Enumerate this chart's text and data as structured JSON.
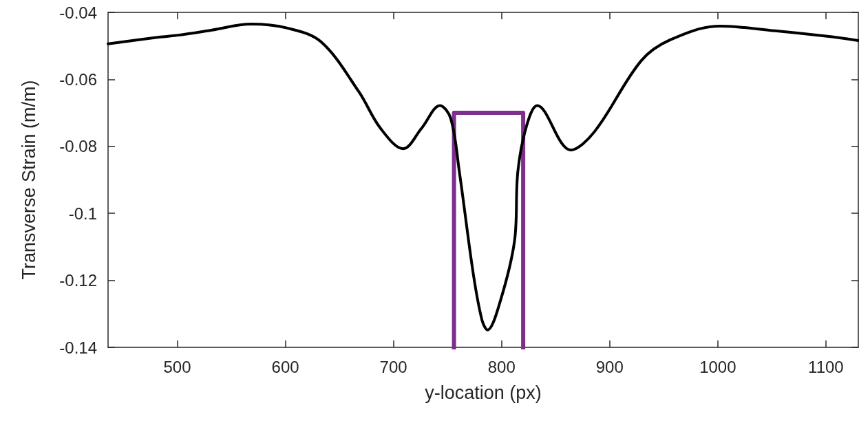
{
  "chart_data": {
    "type": "line",
    "xlabel": "y-location (px)",
    "ylabel": "Transverse Strain (m/m)",
    "xlim": [
      436,
      1130
    ],
    "xticks": [
      500,
      600,
      700,
      800,
      900,
      1000,
      1100
    ],
    "ylim": [
      -0.14,
      -0.04
    ],
    "yticks": [
      -0.14,
      -0.12,
      -0.1,
      -0.08,
      -0.06,
      -0.04
    ],
    "grid": false,
    "marker": "none",
    "line_style": "solid",
    "series": [
      {
        "color": "#000000",
        "x": [
          436,
          483,
          501,
          532,
          568,
          602,
          633,
          668,
          688,
          709,
          726,
          743,
          753,
          761,
          774,
          782,
          787,
          799,
          812,
          815,
          823,
          833,
          864,
          886,
          929,
          956,
          1002,
          1053,
          1100,
          1130
        ],
        "values": [
          -0.0494,
          -0.0474,
          -0.0468,
          -0.0453,
          -0.0435,
          -0.0447,
          -0.0488,
          -0.0637,
          -0.0746,
          -0.0807,
          -0.0746,
          -0.0678,
          -0.0717,
          -0.0877,
          -0.1184,
          -0.132,
          -0.1348,
          -0.126,
          -0.1082,
          -0.0877,
          -0.074,
          -0.0678,
          -0.0811,
          -0.0756,
          -0.0545,
          -0.0482,
          -0.0441,
          -0.0455,
          -0.0471,
          -0.0484
        ]
      },
      {
        "color": "#7e2f8e",
        "x": [
          756,
          756,
          820,
          820
        ],
        "values": [
          -0.14,
          -0.07,
          -0.07,
          -0.14
        ]
      }
    ]
  }
}
